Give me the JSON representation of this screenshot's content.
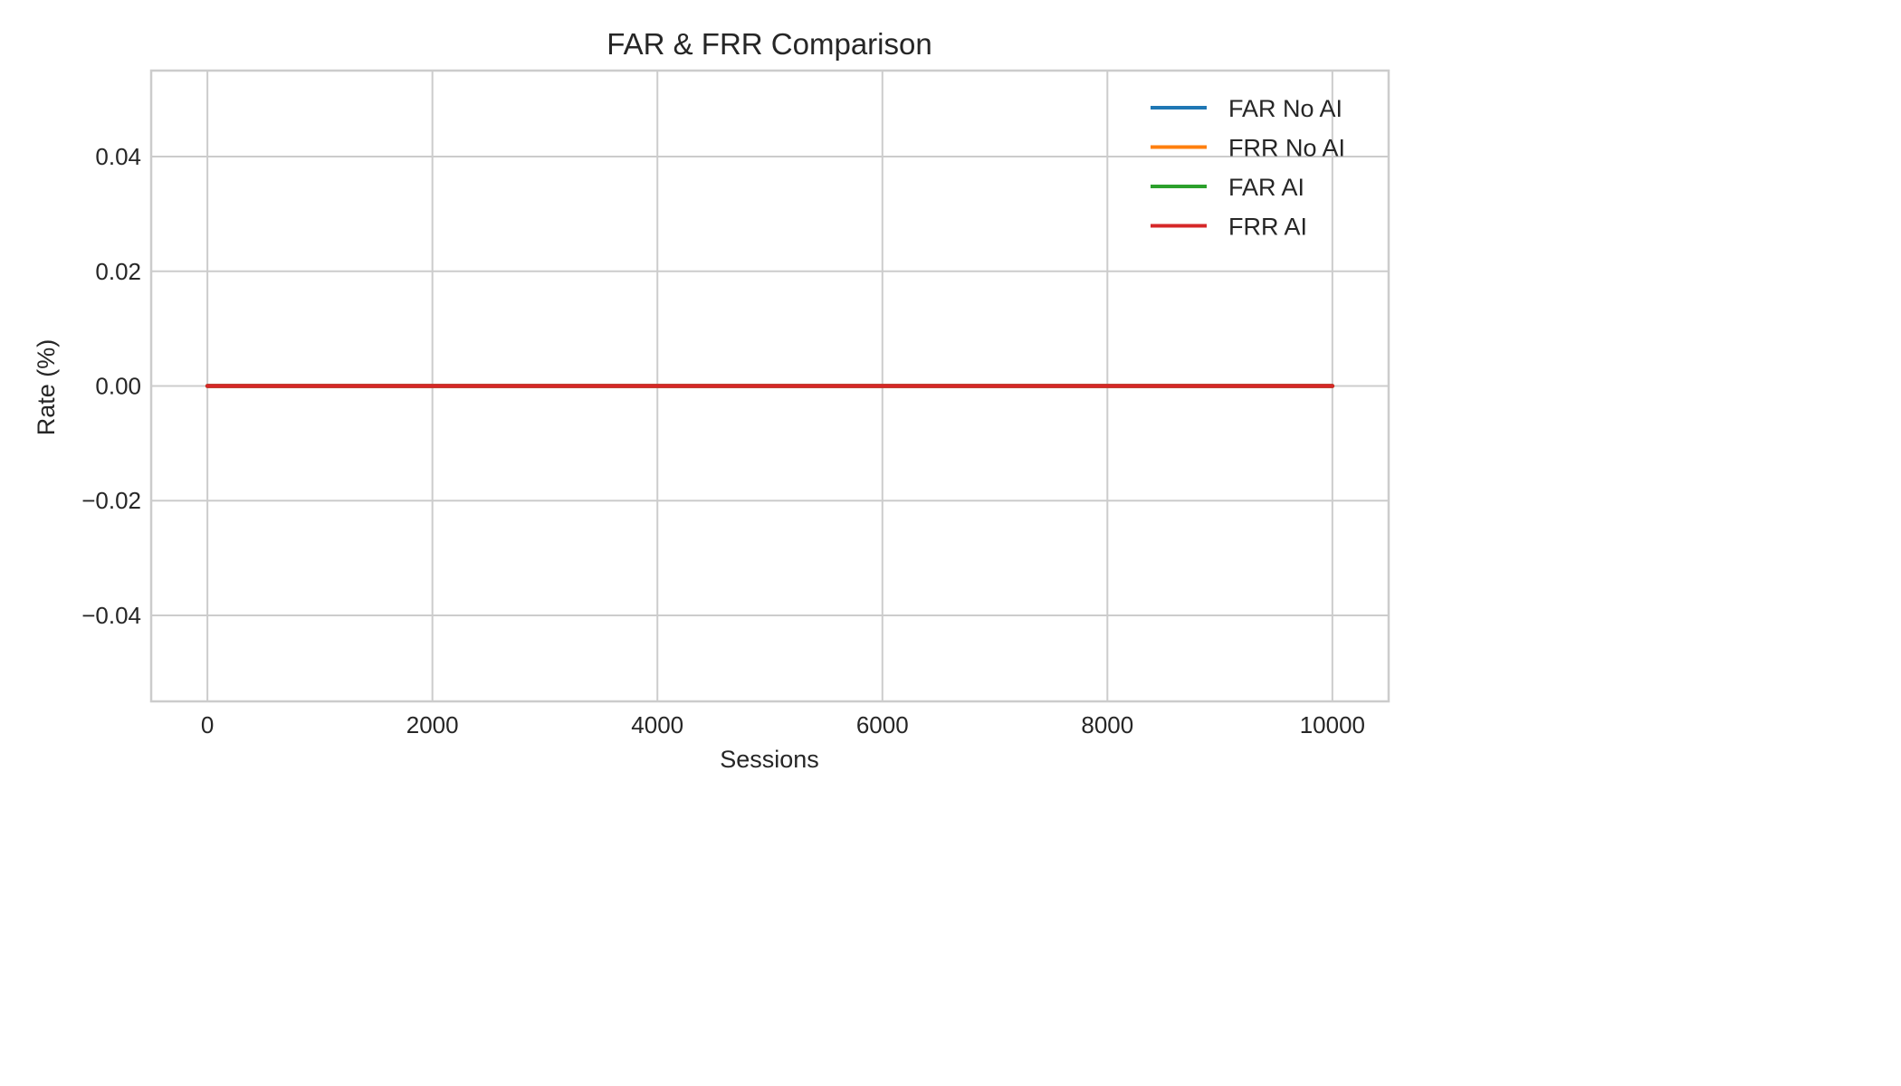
{
  "chart_data": {
    "type": "line",
    "title": "FAR & FRR Comparison",
    "xlabel": "Sessions",
    "ylabel": "Rate (%)",
    "xlim": [
      -500,
      10500
    ],
    "ylim": [
      -0.055,
      0.055
    ],
    "xticks": [
      0,
      2000,
      4000,
      6000,
      8000,
      10000
    ],
    "xtick_labels": [
      "0",
      "2000",
      "4000",
      "6000",
      "8000",
      "10000"
    ],
    "yticks": [
      -0.04,
      -0.02,
      0.0,
      0.02,
      0.04
    ],
    "ytick_labels": [
      "−0.04",
      "−0.02",
      "0.00",
      "0.02",
      "0.04"
    ],
    "grid": true,
    "legend_position": "top-right",
    "series": [
      {
        "name": "FAR No AI",
        "color": "#1f77b4",
        "x": [
          0,
          10000
        ],
        "y": [
          0,
          0
        ]
      },
      {
        "name": "FRR No AI",
        "color": "#ff7f0e",
        "x": [
          0,
          10000
        ],
        "y": [
          0,
          0
        ]
      },
      {
        "name": "FAR AI",
        "color": "#2ca02c",
        "x": [
          0,
          10000
        ],
        "y": [
          0,
          0
        ]
      },
      {
        "name": "FRR AI",
        "color": "#d62728",
        "x": [
          0,
          10000
        ],
        "y": [
          0,
          0
        ]
      }
    ]
  }
}
